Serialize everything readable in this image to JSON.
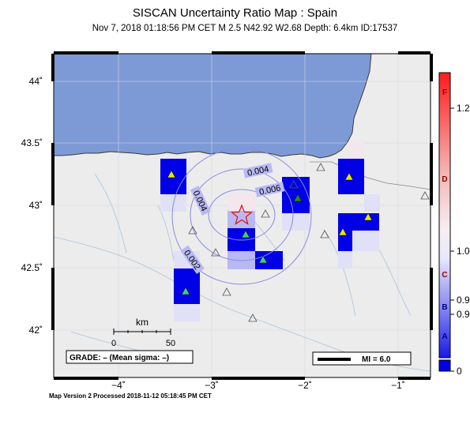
{
  "title": "SISCAN Uncertainty Ratio Map : Spain",
  "subtitle": "Nov  7, 2018 01:18:56 PM CET   M 2.5   N42.92 W2.68   Depth: 6.4km   ID:17537",
  "footer": "Map Version 2 Processed 2018-11-12 05:18:45 PM CET",
  "lat_labels": [
    "44˚",
    "43.5˚",
    "43˚",
    "42.5˚",
    "42˚"
  ],
  "lon_labels": [
    "−4˚",
    "−3˚",
    "−2˚",
    "−1˚"
  ],
  "contour_labels": [
    "0.004",
    "0.006",
    "0.004",
    "0.002"
  ],
  "scale": {
    "unit": "km",
    "ticks": [
      "0",
      "50"
    ]
  },
  "grade_text": "GRADE: – (Mean sigma: –)",
  "mi_legend": "MI = 6.0",
  "colorbar": {
    "letters": [
      "F",
      "D",
      "C",
      "B",
      "A"
    ],
    "values": [
      "1.2",
      "1.0",
      "0.9",
      "0.9",
      "0"
    ]
  },
  "colors": {
    "sea": "#7e9ad6",
    "land": "#ececec",
    "high": "#0000e6",
    "mid": "#b8b8f2",
    "low": "#e0e0f6",
    "contour": "#8b8be0",
    "epicenter": "#e01010"
  },
  "icons": {
    "epicenter": "red-star-icon",
    "station_used": "triangle-icon",
    "station_other": "open-triangle-icon"
  }
}
